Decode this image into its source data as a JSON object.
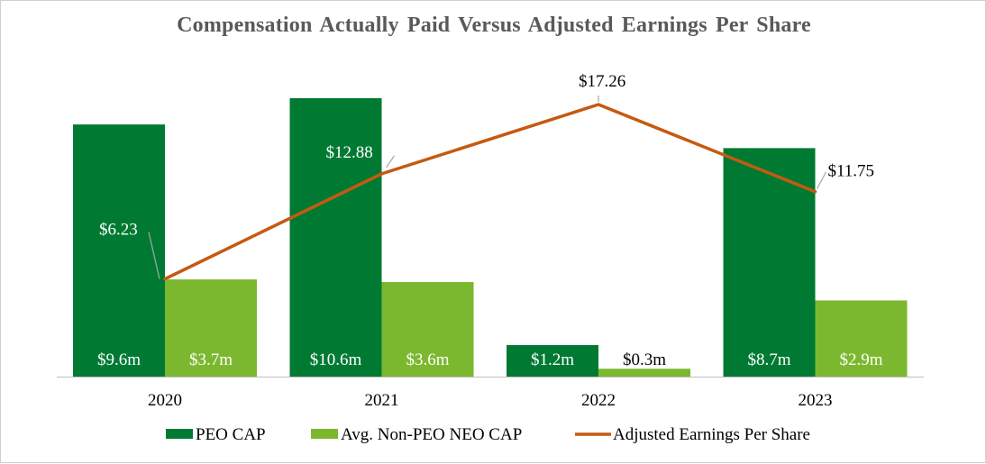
{
  "chart_data": {
    "type": "bar",
    "title": "Compensation Actually Paid Versus Adjusted Earnings Per Share",
    "categories": [
      "2020",
      "2021",
      "2022",
      "2023"
    ],
    "series": [
      {
        "name": "PEO CAP",
        "kind": "bar",
        "values": [
          9.6,
          10.6,
          1.2,
          8.7
        ],
        "labels": [
          "$9.6m",
          "$10.6m",
          "$1.2m",
          "$8.7m"
        ],
        "color": "#007A33"
      },
      {
        "name": "Avg. Non-PEO NEO CAP",
        "kind": "bar",
        "values": [
          3.7,
          3.6,
          0.3,
          2.9
        ],
        "labels": [
          "$3.7m",
          "$3.6m",
          "$0.3m",
          "$2.9m"
        ],
        "color": "#7CB82F"
      },
      {
        "name": "Adjusted Earnings Per Share",
        "kind": "line",
        "values": [
          6.23,
          12.88,
          17.26,
          11.75
        ],
        "labels": [
          "$6.23",
          "$12.88",
          "$17.26",
          "$11.75"
        ],
        "color": "#C55A11"
      }
    ],
    "xlabel": "",
    "ylabel": "",
    "bar_ylim": [
      0,
      10.6
    ],
    "line_ylim": [
      0,
      17.26
    ],
    "grid": false,
    "legend_position": "bottom"
  },
  "colors": {
    "text": "#000000",
    "title": "#595959",
    "axis": "#bfbfbf",
    "leader": "#a6a6a6",
    "inside_label": "#ffffff"
  }
}
